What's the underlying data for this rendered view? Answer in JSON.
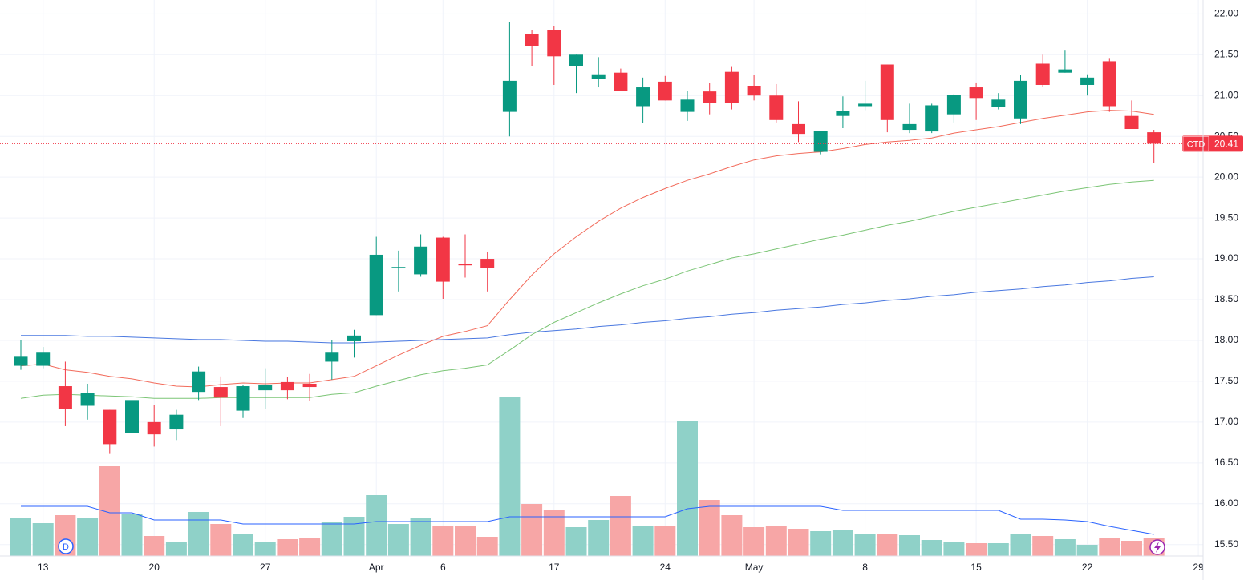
{
  "chart_data": {
    "type": "candlestick",
    "symbol": "CTD",
    "categories": [
      null,
      "13",
      null,
      null,
      null,
      null,
      "20",
      null,
      null,
      null,
      null,
      "27",
      null,
      null,
      null,
      null,
      "Apr",
      null,
      null,
      "6",
      null,
      null,
      null,
      null,
      "17",
      null,
      null,
      null,
      null,
      "24",
      null,
      null,
      null,
      "May",
      null,
      null,
      null,
      null,
      "8",
      null,
      null,
      null,
      null,
      "15",
      null,
      null,
      null,
      null,
      "22",
      null,
      null,
      null,
      null,
      "29"
    ],
    "ohlc": {
      "open": [
        17.69,
        17.69,
        17.44,
        17.2,
        17.15,
        16.87,
        17.0,
        16.91,
        17.37,
        17.43,
        17.14,
        17.39,
        17.49,
        17.47,
        17.74,
        17.99,
        18.31,
        18.89,
        18.81,
        19.26,
        18.94,
        19.0,
        20.8,
        21.75,
        21.8,
        21.36,
        21.2,
        21.28,
        20.87,
        21.17,
        20.8,
        21.05,
        21.29,
        21.12,
        21.0,
        20.65,
        20.31,
        20.75,
        20.87,
        21.38,
        20.58,
        20.56,
        20.77,
        21.1,
        20.86,
        20.72,
        21.39,
        21.28,
        21.13,
        21.42,
        20.75,
        20.55,
        null,
        null
      ],
      "high": [
        18.0,
        17.92,
        17.74,
        17.47,
        17.15,
        17.38,
        17.21,
        17.15,
        17.68,
        17.56,
        17.46,
        17.66,
        17.55,
        17.59,
        18.0,
        18.13,
        19.27,
        19.1,
        19.3,
        19.27,
        19.3,
        19.08,
        21.9,
        21.8,
        21.85,
        21.5,
        21.47,
        21.33,
        21.22,
        21.24,
        21.06,
        21.15,
        21.35,
        21.25,
        21.14,
        20.93,
        20.57,
        20.99,
        21.18,
        21.38,
        20.9,
        20.9,
        21.02,
        21.16,
        21.03,
        21.25,
        21.5,
        21.55,
        21.26,
        21.45,
        20.94,
        20.58,
        null,
        null
      ],
      "low": [
        17.64,
        17.66,
        16.95,
        17.03,
        16.61,
        16.87,
        16.7,
        16.78,
        17.27,
        16.95,
        17.05,
        17.16,
        17.28,
        17.26,
        17.52,
        17.79,
        18.31,
        18.6,
        18.78,
        18.51,
        18.77,
        18.6,
        20.5,
        21.36,
        21.13,
        21.03,
        21.1,
        21.06,
        20.66,
        20.94,
        20.69,
        20.77,
        20.83,
        20.94,
        20.67,
        20.43,
        20.28,
        20.6,
        20.82,
        20.55,
        20.54,
        20.54,
        20.67,
        20.7,
        20.83,
        20.65,
        21.11,
        21.28,
        21.0,
        20.8,
        20.59,
        20.17,
        null,
        null
      ],
      "close": [
        17.8,
        17.85,
        17.16,
        17.36,
        16.73,
        17.27,
        16.85,
        17.09,
        17.62,
        17.3,
        17.44,
        17.46,
        17.39,
        17.43,
        17.85,
        18.06,
        19.05,
        18.9,
        19.15,
        18.72,
        18.92,
        18.89,
        21.18,
        21.61,
        21.48,
        21.5,
        21.26,
        21.06,
        21.1,
        20.94,
        20.95,
        20.91,
        20.91,
        21.0,
        20.7,
        20.53,
        20.57,
        20.81,
        20.9,
        20.7,
        20.65,
        20.88,
        21.01,
        20.97,
        20.95,
        21.18,
        21.13,
        21.32,
        21.22,
        20.87,
        20.59,
        20.41,
        null,
        null
      ]
    },
    "up_color": "#089981",
    "down_color": "#f23645",
    "series": [
      {
        "color": "#f26b5b",
        "values": [
          17.69,
          17.71,
          17.64,
          17.61,
          17.56,
          17.53,
          17.48,
          17.44,
          17.43,
          17.46,
          17.48,
          17.47,
          17.48,
          17.48,
          17.52,
          17.56,
          17.69,
          17.82,
          17.94,
          18.05,
          18.11,
          18.18,
          18.5,
          18.8,
          19.06,
          19.27,
          19.46,
          19.62,
          19.75,
          19.86,
          19.96,
          20.04,
          20.13,
          20.21,
          20.26,
          20.29,
          20.31,
          20.35,
          20.4,
          20.43,
          20.45,
          20.48,
          20.54,
          20.58,
          20.62,
          20.67,
          20.72,
          20.76,
          20.8,
          20.82,
          20.81,
          20.77,
          null,
          null
        ]
      },
      {
        "color": "#7cc576",
        "values": [
          17.29,
          17.33,
          17.34,
          17.33,
          17.32,
          17.31,
          17.29,
          17.29,
          17.29,
          17.3,
          17.3,
          17.3,
          17.3,
          17.3,
          17.34,
          17.36,
          17.44,
          17.51,
          17.58,
          17.63,
          17.66,
          17.7,
          17.88,
          18.07,
          18.22,
          18.34,
          18.46,
          18.57,
          18.67,
          18.75,
          18.85,
          18.93,
          19.01,
          19.06,
          19.12,
          19.18,
          19.24,
          19.29,
          19.35,
          19.41,
          19.46,
          19.52,
          19.58,
          19.63,
          19.68,
          19.73,
          19.78,
          19.83,
          19.87,
          19.91,
          19.94,
          19.96,
          null,
          null
        ]
      },
      {
        "color": "#4a78e0",
        "values": [
          18.06,
          18.06,
          18.06,
          18.05,
          18.05,
          18.04,
          18.03,
          18.02,
          18.01,
          18.01,
          18.0,
          17.99,
          17.99,
          17.98,
          17.97,
          17.97,
          17.98,
          17.99,
          18.0,
          18.01,
          18.02,
          18.03,
          18.07,
          18.1,
          18.12,
          18.14,
          18.17,
          18.19,
          18.22,
          18.24,
          18.27,
          18.29,
          18.32,
          18.34,
          18.37,
          18.39,
          18.41,
          18.44,
          18.46,
          18.49,
          18.51,
          18.54,
          18.56,
          18.59,
          18.61,
          18.63,
          18.66,
          18.68,
          18.71,
          18.73,
          18.76,
          18.78,
          null,
          null
        ]
      }
    ],
    "volume": [
      47,
      41,
      51,
      47,
      112,
      52,
      25,
      17,
      55,
      40,
      28,
      18,
      21,
      22,
      42,
      49,
      76,
      40,
      47,
      37,
      37,
      24,
      198,
      65,
      57,
      36,
      45,
      75,
      38,
      37,
      168,
      70,
      51,
      36,
      38,
      34,
      31,
      32,
      28,
      27,
      26,
      20,
      17,
      16,
      16,
      28,
      25,
      21,
      14,
      23,
      19,
      22,
      null,
      null
    ],
    "volume_up_color": "#8fd1c8",
    "volume_down_color": "#f7a6a6",
    "volume_ma": {
      "color": "#2962ff",
      "values": [
        62,
        62,
        62,
        62,
        54,
        54,
        45,
        45,
        45,
        45,
        40,
        40,
        40,
        40,
        40,
        40,
        43,
        43,
        43,
        43,
        43,
        43,
        49,
        49,
        49,
        49,
        49,
        49,
        49,
        49,
        59,
        62,
        62,
        62,
        62,
        62,
        62,
        57,
        57,
        57,
        57,
        57,
        57,
        57,
        57,
        46,
        46,
        45,
        43,
        37,
        32,
        27,
        null,
        null
      ]
    },
    "ylim": [
      15.36,
      22.17
    ],
    "yticks": [
      {
        "value": 15.5,
        "label": "15.50"
      },
      {
        "value": 16,
        "label": "16.00"
      },
      {
        "value": 16.5,
        "label": "16.50"
      },
      {
        "value": 17,
        "label": "17.00"
      },
      {
        "value": 17.5,
        "label": "17.50"
      },
      {
        "value": 18,
        "label": "18.00"
      },
      {
        "value": 18.5,
        "label": "18.50"
      },
      {
        "value": 19,
        "label": "19.00"
      },
      {
        "value": 19.5,
        "label": "19.50"
      },
      {
        "value": 20,
        "label": "20.00"
      },
      {
        "value": 20.5,
        "label": "20.50"
      },
      {
        "value": 21,
        "label": "21.00"
      },
      {
        "value": 21.5,
        "label": "21.50"
      },
      {
        "value": 22,
        "label": "22.00"
      }
    ],
    "grid": true
  }
}
